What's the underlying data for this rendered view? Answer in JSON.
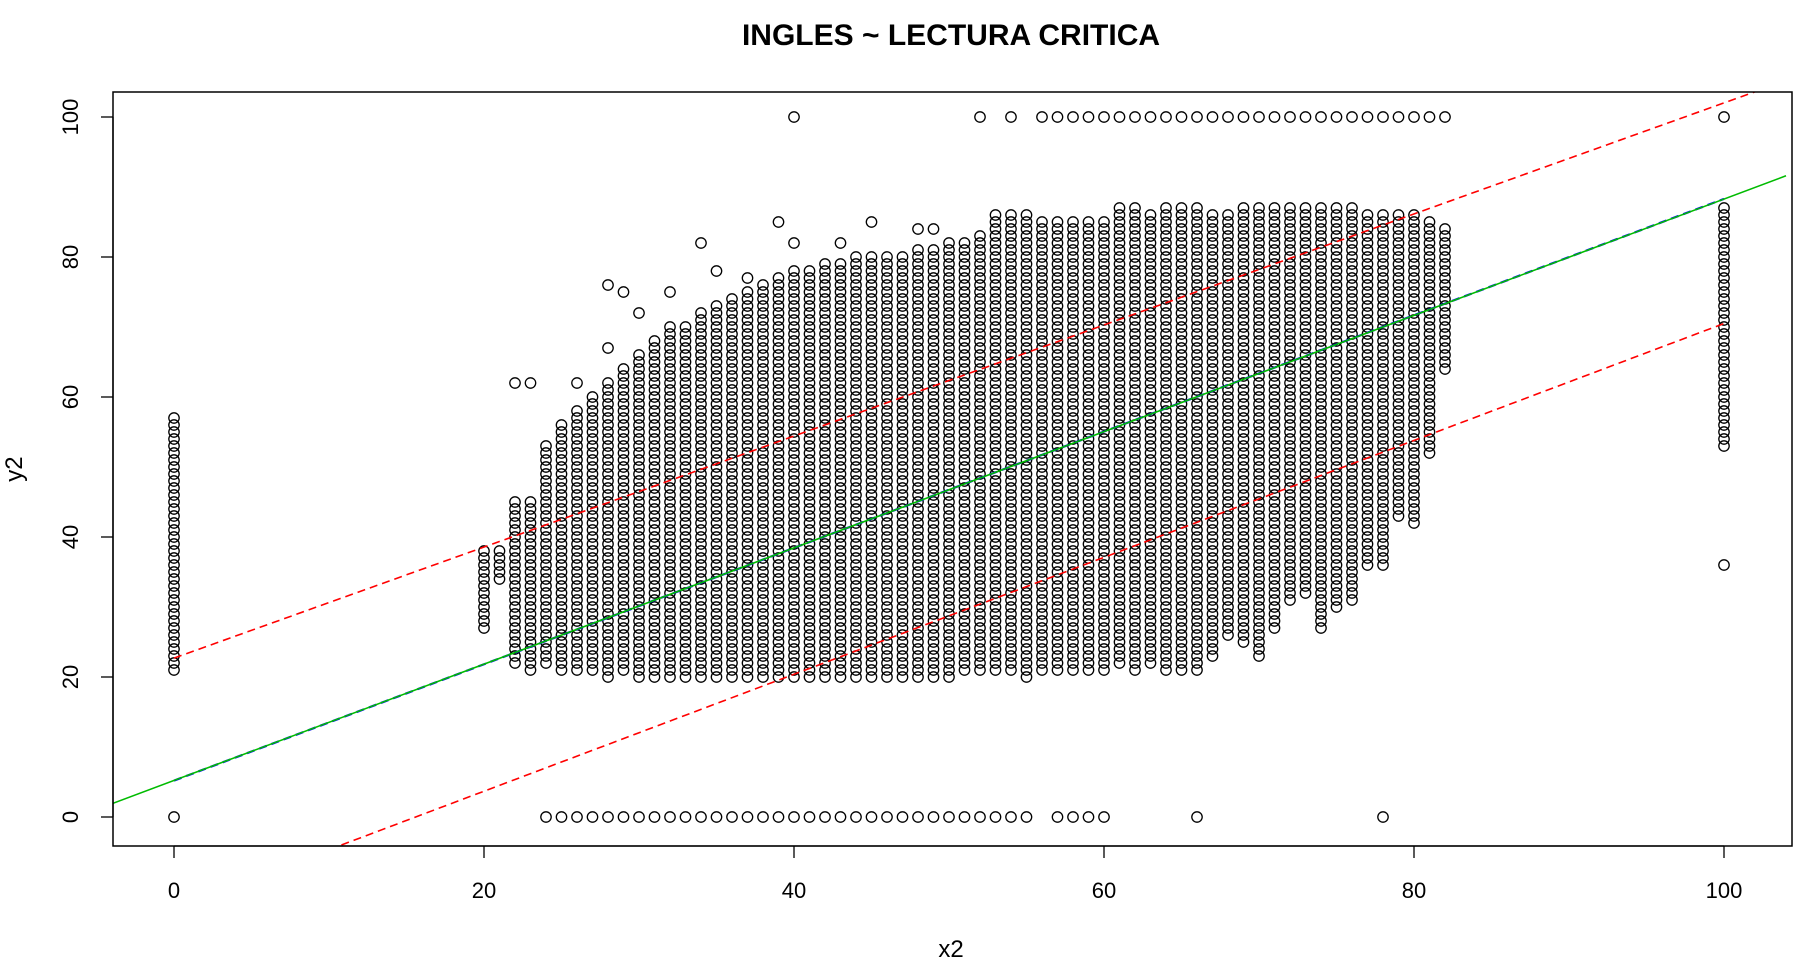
{
  "chart_data": {
    "type": "scatter",
    "title": "INGLES ~ LECTURA CRITICA",
    "xlabel": "x2",
    "ylabel": "y2",
    "xlim": [
      -4,
      104
    ],
    "ylim": [
      -4,
      104
    ],
    "x_ticks": [
      0,
      20,
      40,
      60,
      80,
      100
    ],
    "y_ticks": [
      0,
      20,
      40,
      60,
      80,
      100
    ],
    "grid": false,
    "point_style": "open-circle",
    "point_color": "#000000",
    "columns": [
      {
        "x": 0,
        "y_min": 21,
        "y_max": 57,
        "extra_y": [
          0
        ]
      },
      {
        "x": 20,
        "y_min": 27,
        "y_max": 38,
        "extra_y": []
      },
      {
        "x": 21,
        "y_min": 34,
        "y_max": 38,
        "extra_y": []
      },
      {
        "x": 22,
        "y_min": 22,
        "y_max": 45,
        "extra_y": [
          62
        ]
      },
      {
        "x": 23,
        "y_min": 21,
        "y_max": 45,
        "extra_y": [
          62
        ]
      },
      {
        "x": 24,
        "y_min": 22,
        "y_max": 53,
        "extra_y": [
          0
        ]
      },
      {
        "x": 25,
        "y_min": 21,
        "y_max": 56,
        "extra_y": [
          0
        ]
      },
      {
        "x": 26,
        "y_min": 21,
        "y_max": 58,
        "extra_y": [
          62,
          0
        ]
      },
      {
        "x": 27,
        "y_min": 21,
        "y_max": 60,
        "extra_y": [
          0
        ]
      },
      {
        "x": 28,
        "y_min": 20,
        "y_max": 62,
        "extra_y": [
          67,
          76,
          0
        ]
      },
      {
        "x": 29,
        "y_min": 21,
        "y_max": 64,
        "extra_y": [
          75,
          0
        ]
      },
      {
        "x": 30,
        "y_min": 20,
        "y_max": 66,
        "extra_y": [
          72,
          0
        ]
      },
      {
        "x": 31,
        "y_min": 20,
        "y_max": 68,
        "extra_y": [
          0
        ]
      },
      {
        "x": 32,
        "y_min": 20,
        "y_max": 70,
        "extra_y": [
          75,
          0
        ]
      },
      {
        "x": 33,
        "y_min": 20,
        "y_max": 70,
        "extra_y": [
          0
        ]
      },
      {
        "x": 34,
        "y_min": 20,
        "y_max": 72,
        "extra_y": [
          82,
          0
        ]
      },
      {
        "x": 35,
        "y_min": 20,
        "y_max": 73,
        "extra_y": [
          78,
          0
        ]
      },
      {
        "x": 36,
        "y_min": 20,
        "y_max": 74,
        "extra_y": [
          0
        ]
      },
      {
        "x": 37,
        "y_min": 20,
        "y_max": 75,
        "extra_y": [
          77,
          0
        ]
      },
      {
        "x": 38,
        "y_min": 20,
        "y_max": 76,
        "extra_y": [
          0
        ]
      },
      {
        "x": 39,
        "y_min": 20,
        "y_max": 77,
        "extra_y": [
          85,
          0
        ]
      },
      {
        "x": 40,
        "y_min": 20,
        "y_max": 78,
        "extra_y": [
          82,
          100,
          0
        ]
      },
      {
        "x": 41,
        "y_min": 20,
        "y_max": 78,
        "extra_y": [
          0
        ]
      },
      {
        "x": 42,
        "y_min": 20,
        "y_max": 79,
        "extra_y": [
          0
        ]
      },
      {
        "x": 43,
        "y_min": 20,
        "y_max": 79,
        "extra_y": [
          82,
          0
        ]
      },
      {
        "x": 44,
        "y_min": 20,
        "y_max": 80,
        "extra_y": [
          0
        ]
      },
      {
        "x": 45,
        "y_min": 20,
        "y_max": 80,
        "extra_y": [
          85,
          0
        ]
      },
      {
        "x": 46,
        "y_min": 20,
        "y_max": 80,
        "extra_y": [
          0
        ]
      },
      {
        "x": 47,
        "y_min": 20,
        "y_max": 80,
        "extra_y": [
          0
        ]
      },
      {
        "x": 48,
        "y_min": 20,
        "y_max": 81,
        "extra_y": [
          84,
          0
        ]
      },
      {
        "x": 49,
        "y_min": 20,
        "y_max": 81,
        "extra_y": [
          84,
          0
        ]
      },
      {
        "x": 50,
        "y_min": 20,
        "y_max": 82,
        "extra_y": [
          0
        ]
      },
      {
        "x": 51,
        "y_min": 21,
        "y_max": 82,
        "extra_y": [
          0
        ]
      },
      {
        "x": 52,
        "y_min": 21,
        "y_max": 83,
        "extra_y": [
          100,
          0
        ]
      },
      {
        "x": 53,
        "y_min": 21,
        "y_max": 86,
        "extra_y": [
          0
        ]
      },
      {
        "x": 54,
        "y_min": 21,
        "y_max": 86,
        "extra_y": [
          100,
          0
        ]
      },
      {
        "x": 55,
        "y_min": 20,
        "y_max": 86,
        "extra_y": [
          0
        ]
      },
      {
        "x": 56,
        "y_min": 21,
        "y_max": 85,
        "extra_y": [
          100
        ]
      },
      {
        "x": 57,
        "y_min": 21,
        "y_max": 85,
        "extra_y": [
          100,
          0
        ]
      },
      {
        "x": 58,
        "y_min": 21,
        "y_max": 85,
        "extra_y": [
          100,
          0
        ]
      },
      {
        "x": 59,
        "y_min": 21,
        "y_max": 85,
        "extra_y": [
          100,
          0
        ]
      },
      {
        "x": 60,
        "y_min": 21,
        "y_max": 85,
        "extra_y": [
          100,
          0
        ]
      },
      {
        "x": 61,
        "y_min": 22,
        "y_max": 87,
        "extra_y": [
          100
        ]
      },
      {
        "x": 62,
        "y_min": 21,
        "y_max": 87,
        "extra_y": [
          100
        ]
      },
      {
        "x": 63,
        "y_min": 22,
        "y_max": 86,
        "extra_y": [
          100
        ]
      },
      {
        "x": 64,
        "y_min": 21,
        "y_max": 87,
        "extra_y": [
          100
        ]
      },
      {
        "x": 65,
        "y_min": 21,
        "y_max": 87,
        "extra_y": [
          100
        ]
      },
      {
        "x": 66,
        "y_min": 21,
        "y_max": 87,
        "extra_y": [
          100,
          0
        ]
      },
      {
        "x": 67,
        "y_min": 23,
        "y_max": 86,
        "extra_y": [
          100
        ]
      },
      {
        "x": 68,
        "y_min": 26,
        "y_max": 86,
        "extra_y": [
          100
        ]
      },
      {
        "x": 69,
        "y_min": 25,
        "y_max": 87,
        "extra_y": [
          100
        ]
      },
      {
        "x": 70,
        "y_min": 23,
        "y_max": 87,
        "extra_y": [
          100
        ]
      },
      {
        "x": 71,
        "y_min": 27,
        "y_max": 87,
        "extra_y": [
          100
        ]
      },
      {
        "x": 72,
        "y_min": 31,
        "y_max": 87,
        "extra_y": [
          100
        ]
      },
      {
        "x": 73,
        "y_min": 32,
        "y_max": 87,
        "extra_y": [
          100
        ]
      },
      {
        "x": 74,
        "y_min": 27,
        "y_max": 87,
        "extra_y": [
          100
        ]
      },
      {
        "x": 75,
        "y_min": 30,
        "y_max": 87,
        "extra_y": [
          100
        ]
      },
      {
        "x": 76,
        "y_min": 31,
        "y_max": 87,
        "extra_y": [
          100
        ]
      },
      {
        "x": 77,
        "y_min": 36,
        "y_max": 86,
        "extra_y": [
          100
        ]
      },
      {
        "x": 78,
        "y_min": 36,
        "y_max": 86,
        "extra_y": [
          100,
          0
        ]
      },
      {
        "x": 79,
        "y_min": 43,
        "y_max": 86,
        "extra_y": [
          100
        ]
      },
      {
        "x": 80,
        "y_min": 42,
        "y_max": 86,
        "extra_y": [
          100
        ]
      },
      {
        "x": 81,
        "y_min": 52,
        "y_max": 85,
        "extra_y": [
          100
        ]
      },
      {
        "x": 82,
        "y_min": 64,
        "y_max": 84,
        "extra_y": [
          100
        ]
      },
      {
        "x": 100,
        "y_min": 53,
        "y_max": 87,
        "extra_y": [
          36,
          100
        ]
      }
    ],
    "lines": [
      {
        "role": "fit",
        "color": "#0000ff",
        "style": "dashed",
        "x": [
          0,
          100
        ],
        "y": [
          5.2,
          88.3
        ]
      },
      {
        "role": "reference",
        "color": "#00bb00",
        "style": "solid",
        "x": [
          -4,
          104
        ],
        "y": [
          1.9,
          91.6
        ]
      },
      {
        "role": "upper-band",
        "color": "#ff0000",
        "style": "dashed",
        "x": [
          0,
          102.5
        ],
        "y": [
          22.7,
          104
        ]
      },
      {
        "role": "lower-band",
        "color": "#ff0000",
        "style": "dashed",
        "x": [
          10.8,
          100
        ],
        "y": [
          -4,
          70.5
        ]
      }
    ]
  }
}
